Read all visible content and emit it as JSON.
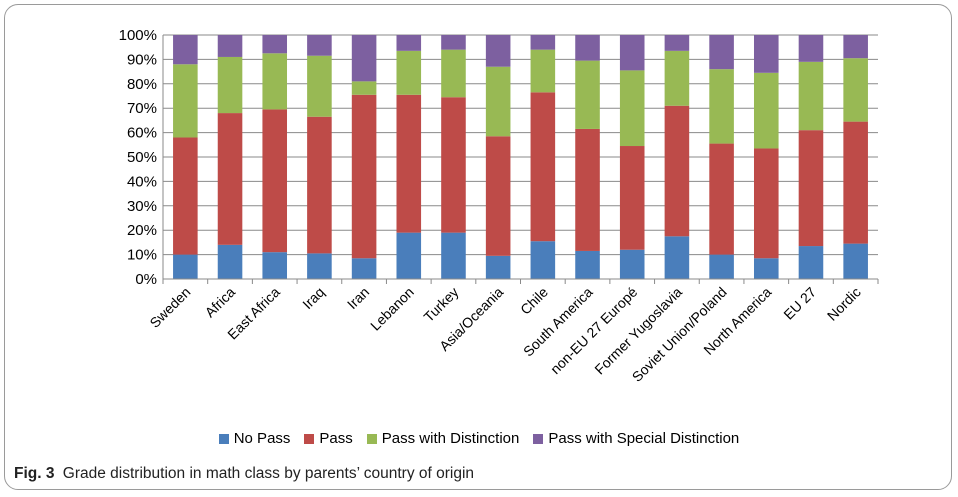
{
  "caption": {
    "label": "Fig. 3",
    "text": "Grade distribution in math class by parents’ country of origin"
  },
  "chart_data": {
    "type": "bar",
    "stacked": true,
    "categories": [
      "Sweden",
      "Africa",
      "East Africa",
      "Iraq",
      "Iran",
      "Lebanon",
      "Turkey",
      "Asia/Oceania",
      "Chile",
      "South America",
      "non-EU 27 Europé",
      "Former Yugoslavia",
      "Soviet Union/Poland",
      "North America",
      "EU 27",
      "Nordic"
    ],
    "series": [
      {
        "name": "No Pass",
        "color": "#4a7ebb",
        "values": [
          10,
          14,
          11,
          10.5,
          8.5,
          19,
          19,
          9.5,
          15.5,
          11.5,
          12,
          17.5,
          10,
          8.5,
          13.5,
          14.5
        ]
      },
      {
        "name": "Pass",
        "color": "#be4b48",
        "values": [
          48,
          54,
          58.5,
          56,
          67,
          56.5,
          55.5,
          49,
          61,
          50,
          42.5,
          53.5,
          45.5,
          45,
          47.5,
          50
        ]
      },
      {
        "name": "Pass with Distinction",
        "color": "#98b954",
        "values": [
          30,
          23,
          23,
          25,
          5.5,
          18,
          19.5,
          28.5,
          17.5,
          28,
          31,
          22.5,
          30.5,
          31,
          28,
          26
        ]
      },
      {
        "name": "Pass with Special Distinction",
        "color": "#7d60a0",
        "values": [
          12,
          9,
          7.5,
          8.5,
          19,
          6.5,
          6,
          13,
          6,
          10.5,
          14.5,
          6.5,
          14,
          15.5,
          11,
          9.5
        ]
      }
    ],
    "ylim": [
      0,
      100
    ],
    "yticks": [
      "0%",
      "10%",
      "20%",
      "30%",
      "40%",
      "50%",
      "60%",
      "70%",
      "80%",
      "90%",
      "100%"
    ],
    "grid": true,
    "legend_position": "bottom"
  }
}
